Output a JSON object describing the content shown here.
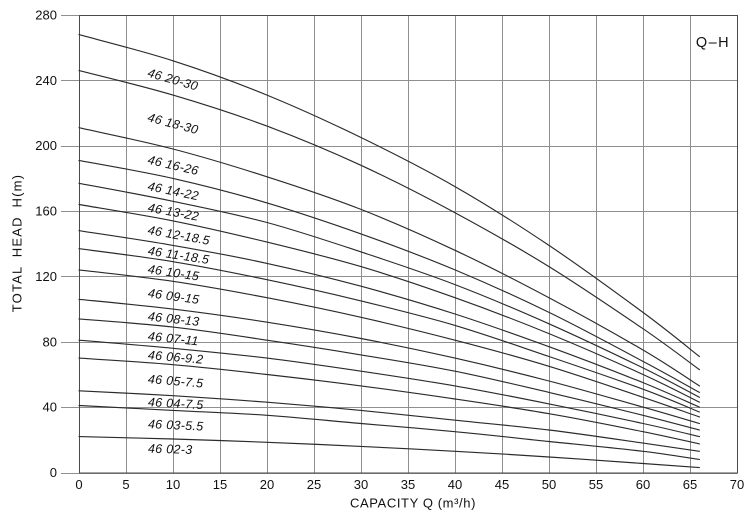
{
  "chart_data": {
    "type": "line",
    "title": "",
    "legend_label": "Q–H",
    "legend_position": "top-right",
    "xlabel": "CAPACITY Q (m³/h)",
    "ylabel": "TOTAL HEAD H(m)",
    "xlim": [
      0,
      70
    ],
    "ylim": [
      0,
      280
    ],
    "xticks": [
      0,
      5,
      10,
      15,
      20,
      25,
      30,
      35,
      40,
      45,
      50,
      55,
      60,
      65,
      70
    ],
    "yticks": [
      0,
      40,
      80,
      120,
      160,
      200,
      240,
      280
    ],
    "grid": true,
    "x": [
      0,
      10,
      20,
      30,
      40,
      50,
      60,
      66
    ],
    "series": [
      {
        "label": "46 20-30",
        "h": [
          268,
          252,
          231,
          205,
          175,
          139,
          98,
          71
        ]
      },
      {
        "label": "46 18-30",
        "h": [
          246,
          231,
          212,
          188,
          159,
          126,
          88,
          63
        ]
      },
      {
        "label": "46 16-26",
        "h": [
          211,
          198,
          181,
          161,
          136,
          107,
          75,
          53
        ]
      },
      {
        "label": "46 14-22",
        "h": [
          191,
          180,
          165,
          146,
          124,
          98,
          68,
          49
        ]
      },
      {
        "label": "46 13-22",
        "h": [
          177,
          166,
          153,
          135,
          115,
          91,
          64,
          46
        ]
      },
      {
        "label": "46 12-18.5",
        "h": [
          164,
          154,
          141,
          126,
          107,
          85,
          60,
          43
        ]
      },
      {
        "label": "46 11-18.5",
        "h": [
          148,
          139,
          128,
          114,
          97,
          77,
          55,
          40
        ]
      },
      {
        "label": "46 10-15",
        "h": [
          137,
          129,
          118,
          105,
          90,
          71,
          51,
          37
        ]
      },
      {
        "label": "46 09-15",
        "h": [
          124,
          117,
          107,
          95,
          81,
          65,
          46,
          34
        ]
      },
      {
        "label": "46 08-13",
        "h": [
          106,
          100,
          92,
          82,
          70,
          56,
          40,
          30
        ]
      },
      {
        "label": "46 07-11",
        "h": [
          94,
          89,
          81,
          72,
          62,
          49,
          35,
          26
        ]
      },
      {
        "label": "46 06-9.2",
        "h": [
          81,
          76,
          70,
          62,
          53,
          42,
          30,
          22
        ]
      },
      {
        "label": "46 05-7.5",
        "h": [
          70,
          66,
          60,
          53,
          45,
          36,
          25,
          17.5
        ]
      },
      {
        "label": "46 04-7.5",
        "h": [
          50,
          47,
          43,
          38,
          32,
          26,
          18,
          13
        ]
      },
      {
        "label": "46 03-5.5",
        "h": [
          41,
          38,
          35,
          30,
          25,
          19,
          13,
          8
        ]
      },
      {
        "label": "46 02-3",
        "h": [
          22,
          20.5,
          18.5,
          16,
          13,
          9.5,
          5.5,
          3
        ]
      }
    ],
    "colors": {
      "curve": "#2b2b2b",
      "grid": "#8f8f8f",
      "border": "#4a4a4a",
      "text": "#111111",
      "background": "#ffffff"
    }
  }
}
